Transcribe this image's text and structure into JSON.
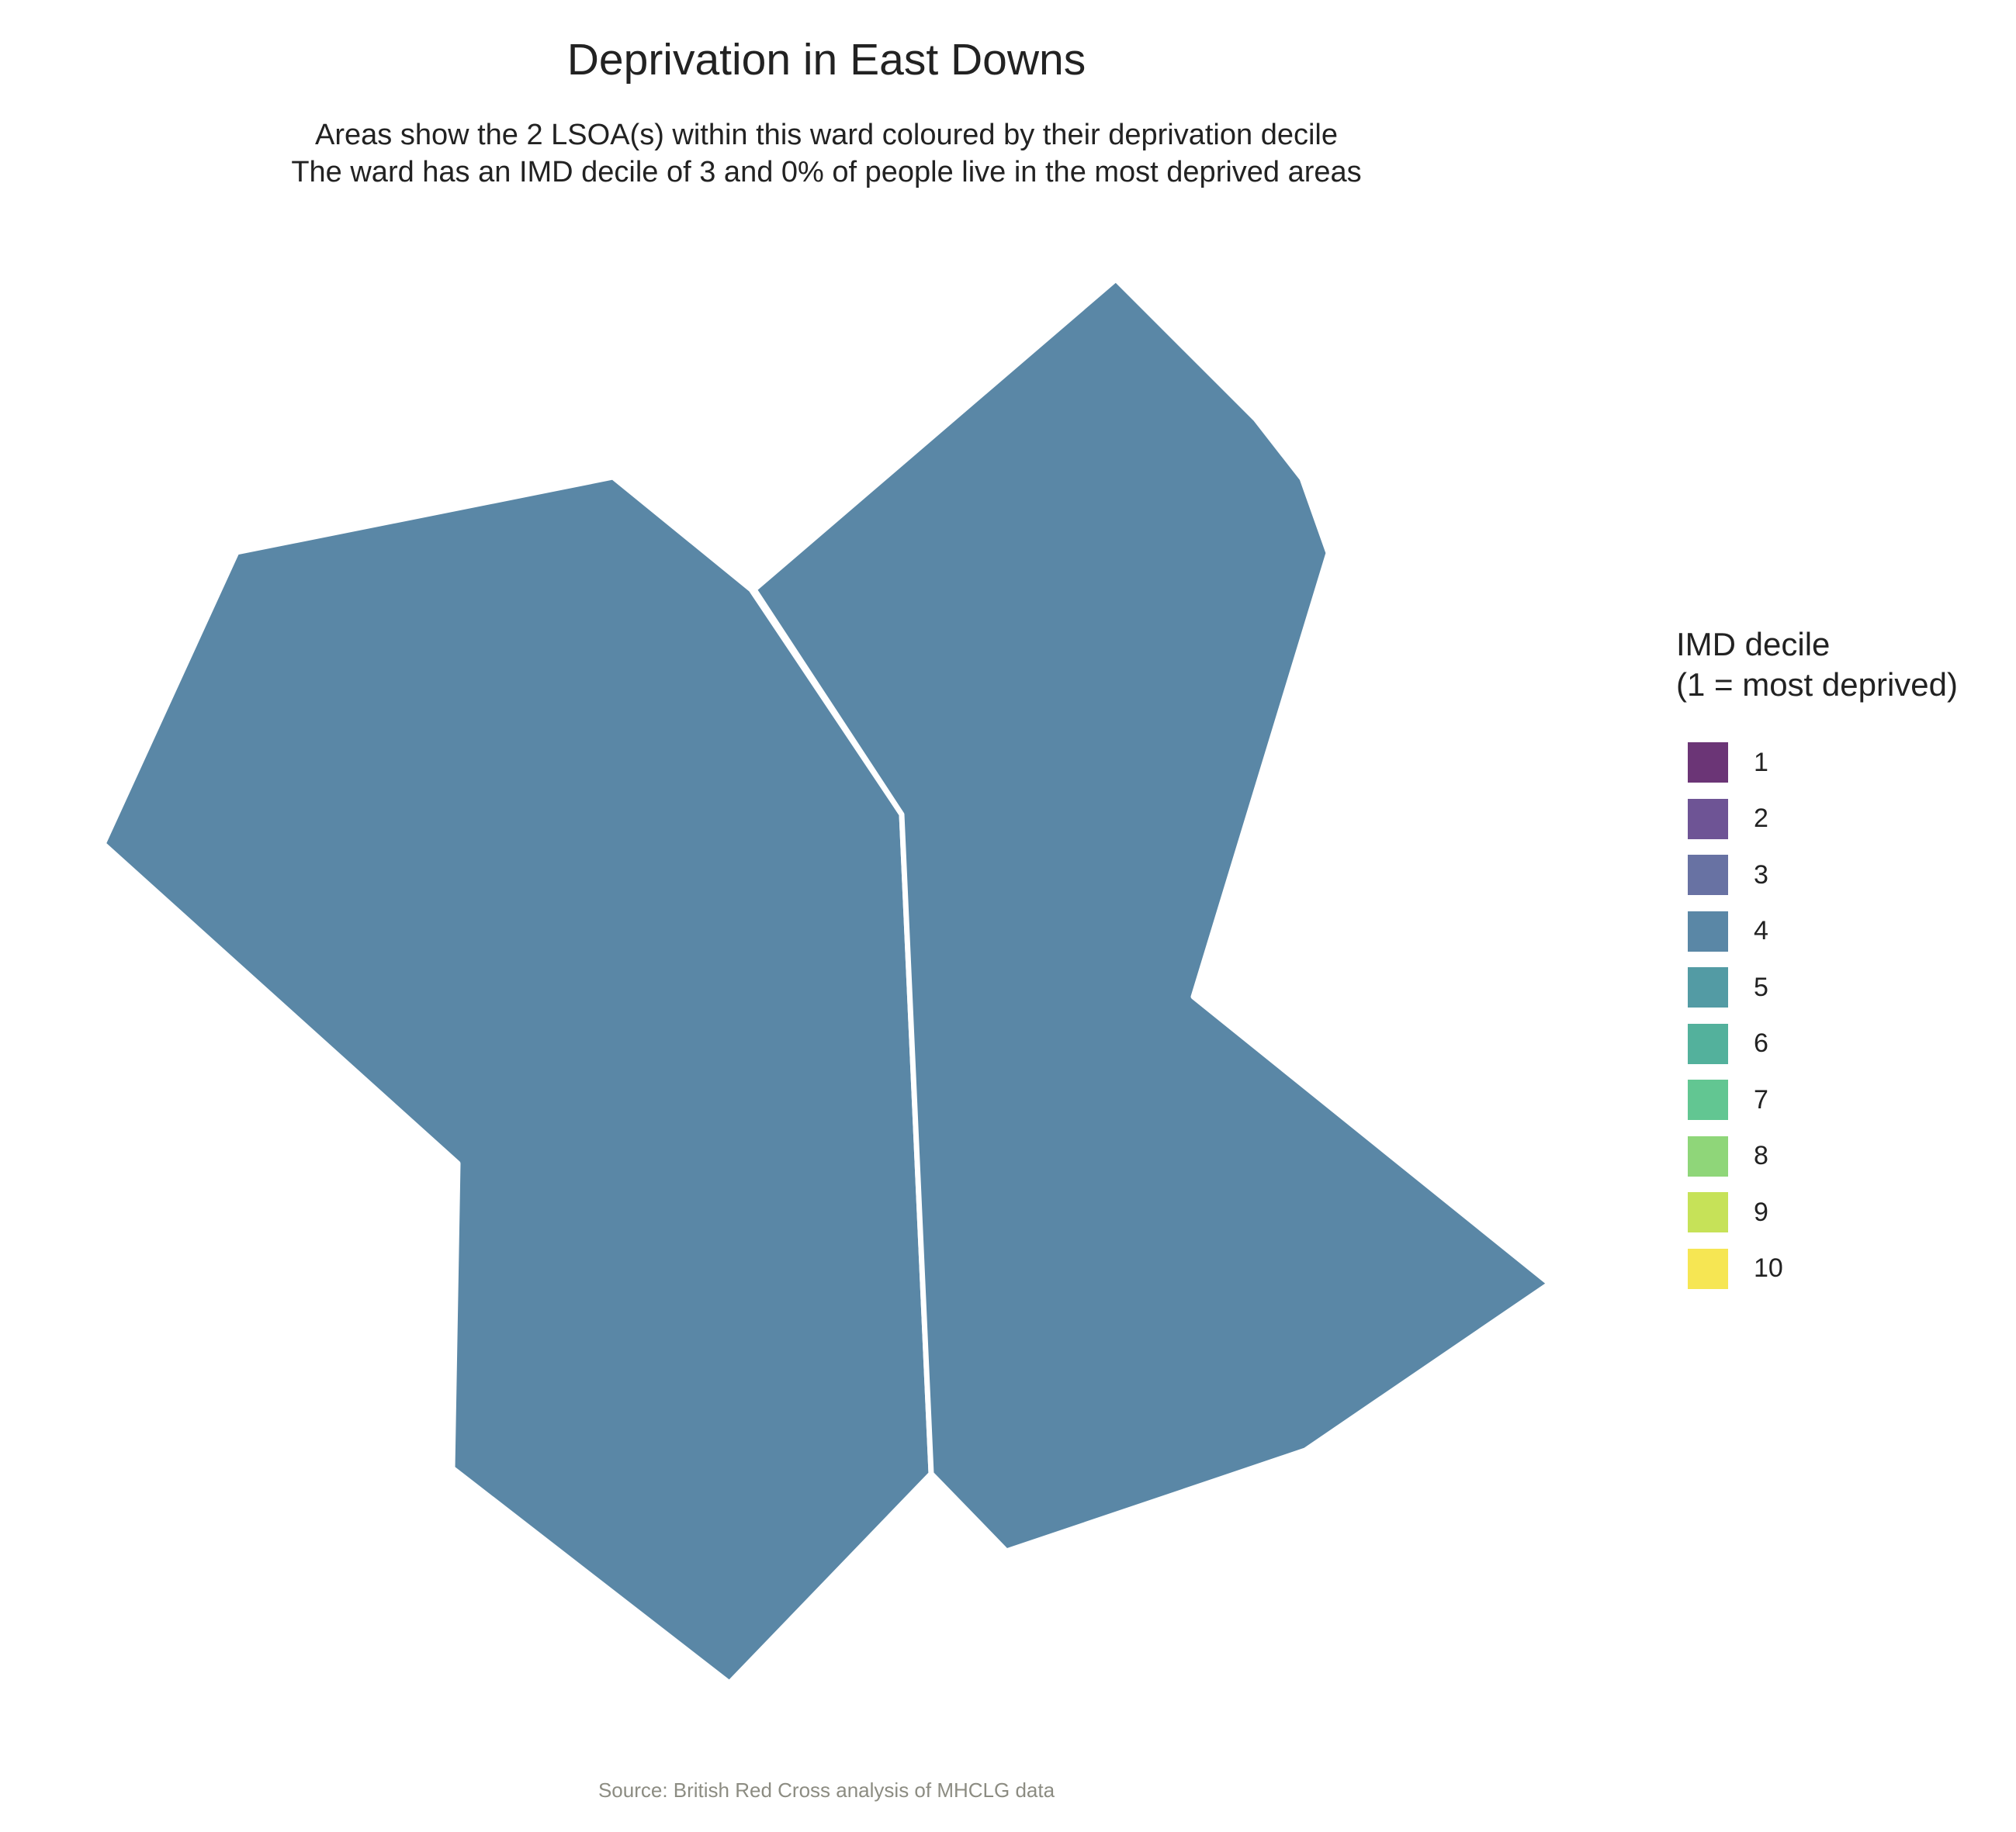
{
  "title": "Deprivation in East Downs",
  "subtitle_line1": "Areas show the 2 LSOA(s) within this ward coloured by their deprivation decile",
  "subtitle_line2": "The ward has an IMD decile of 3 and 0% of people live in the most deprived areas",
  "legend": {
    "title_line1": "IMD decile",
    "title_line2": "(1 = most deprived)",
    "items": [
      {
        "label": "1",
        "color": "#6b3576"
      },
      {
        "label": "2",
        "color": "#6e5495"
      },
      {
        "label": "3",
        "color": "#6872a3"
      },
      {
        "label": "4",
        "color": "#5a87a6"
      },
      {
        "label": "5",
        "color": "#539ba4"
      },
      {
        "label": "6",
        "color": "#53b19c"
      },
      {
        "label": "7",
        "color": "#62c692"
      },
      {
        "label": "8",
        "color": "#8fd679"
      },
      {
        "label": "9",
        "color": "#c6e258"
      },
      {
        "label": "10",
        "color": "#f6e653"
      }
    ]
  },
  "areas": [
    {
      "decile": 4,
      "color": "#5a87a6"
    },
    {
      "decile": 4,
      "color": "#5a87a6"
    }
  ],
  "source": "Source: British Red Cross analysis of MHCLG data"
}
